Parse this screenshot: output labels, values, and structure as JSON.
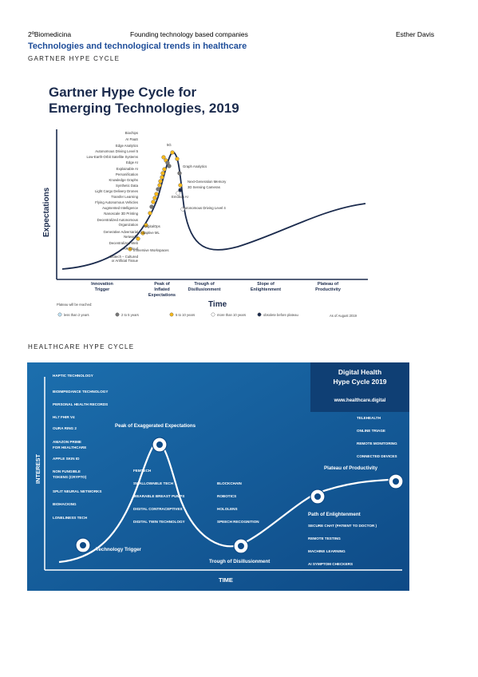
{
  "header": {
    "left": "2ºBiomedicina",
    "center": "Founding technology based companies",
    "right": "Esther Davis"
  },
  "doc_title": "Technologies and technological trends in healthcare",
  "section1": "GARTNER HYPE CYCLE",
  "section2": "HEALTHCARE HYPE CYCLE",
  "gartner": {
    "title_line1": "Gartner Hype Cycle for",
    "title_line2": "Emerging Technologies, 2019",
    "ylabel": "Expectations",
    "xlabel": "Time",
    "phases": [
      {
        "l1": "Innovation",
        "l2": "Trigger",
        "l3": ""
      },
      {
        "l1": "Peak of",
        "l2": "Inflated",
        "l3": "Expectations"
      },
      {
        "l1": "Trough of",
        "l2": "Disillusionment",
        "l3": ""
      },
      {
        "l1": "Slope of",
        "l2": "Enlightenment",
        "l3": ""
      },
      {
        "l1": "Plateau of",
        "l2": "Productivity",
        "l3": ""
      }
    ],
    "left_labels": [
      "Biochips",
      "AI PaaS",
      "Edge Analytics",
      "Autonomous Driving Level 5",
      "Low-Earth-Orbit Satellite Systems",
      "Edge AI",
      "Explainable AI",
      "Personification",
      "Knowledge Graphs",
      "Synthetic Data",
      "Light Cargo Delivery Drones",
      "Transfer Learning",
      "Flying Autonomous Vehicles",
      "Augmented Intelligence",
      "Nanoscale 3D Printing",
      "Decentralized Autonomous",
      "Organization",
      "Generative Adversarial",
      "Networks",
      "Decentralized Web",
      "AR Cloud",
      "Biotech – Cultured",
      "or Artificial Tissue"
    ],
    "right_labels": [
      "5G",
      "Graph Analytics",
      "Next-Generation Memory",
      "3D Sensing Cameras",
      "Emotion AI",
      "Autonomous Driving Level 4",
      "DigitalOps",
      "Adaptive ML",
      "Immersive Workspaces"
    ],
    "legend_title": "Plateau will be reached:",
    "legend": [
      {
        "label": "less than 2 years",
        "color": "#bfe3f6"
      },
      {
        "label": "2 to 5 years",
        "color": "#777777"
      },
      {
        "label": "5 to 10 years",
        "color": "#f6b81a"
      },
      {
        "label": "more than 10 years",
        "color": "#ffffff"
      },
      {
        "label": "obsolete before plateau",
        "color": "#1b2b4d"
      }
    ],
    "asof": "As of August 2019"
  },
  "health": {
    "box_title1": "Digital Health",
    "box_title2": "Hype Cycle 2019",
    "url": "www.healthcare.digital",
    "ylabel": "INTEREST",
    "xlabel": "TIME",
    "left_list": [
      "HAPTIC TECHNOLOGY",
      "BIOIMPEDANCE TECHNOLOGY",
      "PERSONAL HEALTH RECORDS",
      "HL7 FHIR V4",
      "OURA RING 2",
      "AMAZON PRIME",
      "FOR HEALTHCARE",
      "APPLE SKIN ID",
      "NON FUNGIBLE",
      "TOKENS (CRYPTO)",
      "SPLIT NEURAL NETWORKS",
      "BIOHACKING",
      "LONELINESS TECH"
    ],
    "peak_label": "Peak of Exaggerated Expectations",
    "peak_list": [
      "FEMTECH",
      "SWALLOWABLE TECH",
      "WEARABLE BREAST PUMPS",
      "DIGITAL CONTRACEPTIVES",
      "DIGITAL TWIN TECHNOLOGY"
    ],
    "trough_list": [
      "BLOCKCHAIN",
      "ROBOTICS",
      "HOLOLENS",
      "SPEECH RECOGNITION"
    ],
    "trigger_label": "Technology Trigger",
    "trough_label": "Trough of Disillusionment",
    "path_label": "Path of Enlightenment",
    "path_list": [
      "SECURE CHAT (PATIENT TO DOCTOR )",
      "REMOTE TESTING",
      "MACHINE LEARNING",
      "AI SYMPTOM CHECKERS"
    ],
    "plateau_label": "Plateau of Productivity",
    "right_list": [
      "TELEHEALTH",
      "ONLINE TRIAGE",
      "REMOTE MONITORING",
      "CONNECTED DEVICES"
    ]
  }
}
